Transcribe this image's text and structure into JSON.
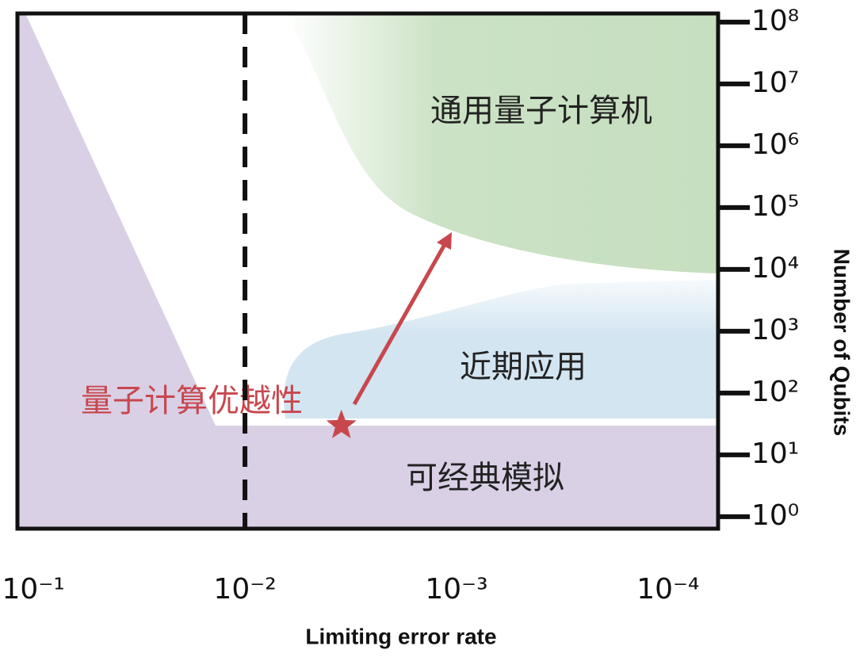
{
  "chart_data": {
    "type": "scatter",
    "xlabel": "Limiting error rate",
    "ylabel": "Number of Qubits",
    "xscale": "log",
    "yscale": "log",
    "xlim": [
      0.119,
      5.8e-05
    ],
    "ylim": [
      0.64,
      138000000
    ],
    "xticks": [
      {
        "value": 0.1,
        "label": "10⁻¹"
      },
      {
        "value": 0.01,
        "label": "10⁻²"
      },
      {
        "value": 0.001,
        "label": "10⁻³"
      },
      {
        "value": 0.0001,
        "label": "10⁻⁴"
      }
    ],
    "yticks": [
      {
        "value": 1,
        "label": "10⁰"
      },
      {
        "value": 10,
        "label": "10¹"
      },
      {
        "value": 100,
        "label": "10²"
      },
      {
        "value": 1000,
        "label": "10³"
      },
      {
        "value": 10000,
        "label": "10⁴"
      },
      {
        "value": 100000,
        "label": "10⁵"
      },
      {
        "value": 1000000,
        "label": "10⁶"
      },
      {
        "value": 10000000,
        "label": "10⁷"
      },
      {
        "value": 100000000,
        "label": "10⁸"
      }
    ],
    "point": {
      "x": 0.0035,
      "y": 30,
      "color": "#c8474d"
    },
    "annotations": [
      "通用量子计算机",
      "近期应用",
      "可经典模拟",
      "量子计算优越性"
    ]
  }
}
